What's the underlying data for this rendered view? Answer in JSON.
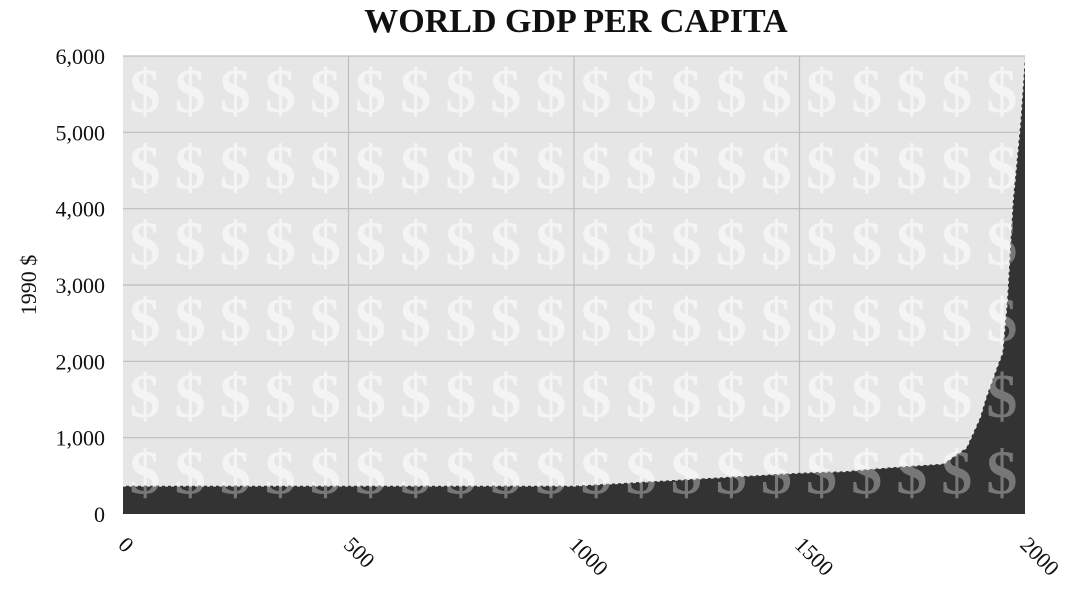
{
  "chart_data": {
    "type": "area",
    "title": "WORLD GDP PER CAPITA",
    "xlabel": "",
    "ylabel": "1990 $",
    "xlim": [
      0,
      2000
    ],
    "ylim": [
      0,
      6000
    ],
    "x_ticks": [
      0,
      500,
      1000,
      1500,
      2000
    ],
    "x_tick_labels": [
      "0",
      "500",
      "1000",
      "1500",
      "2000"
    ],
    "y_ticks": [
      0,
      1000,
      2000,
      3000,
      4000,
      5000,
      6000
    ],
    "y_tick_labels": [
      "0",
      "1,000",
      "2,000",
      "3,000",
      "4,000",
      "5,000",
      "6,000"
    ],
    "grid": true,
    "legend": "none",
    "background_pattern": "dollar-sign",
    "colors": {
      "plot_background": "#e6e6e6",
      "gridline": "#bdbdbd",
      "area_fill": "#333333",
      "pattern_on_light": "#f4f4f4",
      "pattern_on_dark": "#777777"
    },
    "series": [
      {
        "x": [
          0,
          1000,
          1500,
          1600,
          1700,
          1820,
          1870,
          1900,
          1913,
          1940,
          1950,
          1960,
          1973,
          1990,
          2000
        ],
        "values": [
          370,
          370,
          540,
          560,
          610,
          660,
          870,
          1260,
          1520,
          1960,
          2110,
          2780,
          4090,
          5150,
          6000
        ]
      }
    ]
  }
}
